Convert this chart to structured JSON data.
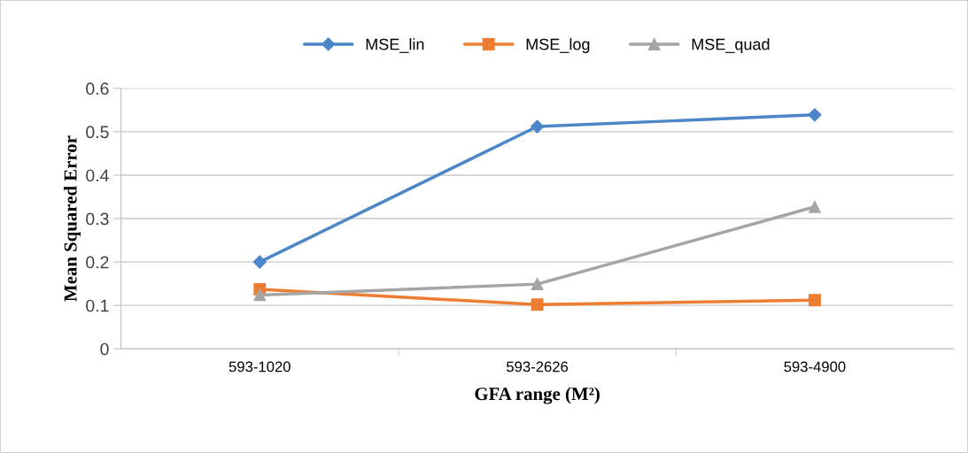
{
  "chart_data": {
    "type": "line",
    "xlabel": "GFA range (M²)",
    "ylabel": "Mean Squared Error",
    "categories": [
      "593-1020",
      "593-2626",
      "593-4900"
    ],
    "series": [
      {
        "name": "MSE_lin",
        "color": "#4a86c8",
        "values": [
          0.2,
          0.512,
          0.539
        ],
        "marker": "diamond"
      },
      {
        "name": "MSE_log",
        "color": "#ed7d31",
        "values": [
          0.137,
          0.102,
          0.112
        ],
        "marker": "square"
      },
      {
        "name": "MSE_quad",
        "color": "#a5a5a5",
        "values": [
          0.124,
          0.149,
          0.327
        ],
        "marker": "triangle"
      }
    ],
    "ylim": [
      0,
      0.6
    ],
    "yticks": [
      {
        "value": 0,
        "label": "0"
      },
      0.1,
      0.2,
      0.3,
      0.4,
      0.5,
      0.6
    ],
    "grid": "y",
    "legend": "top",
    "line_style": "solid"
  }
}
